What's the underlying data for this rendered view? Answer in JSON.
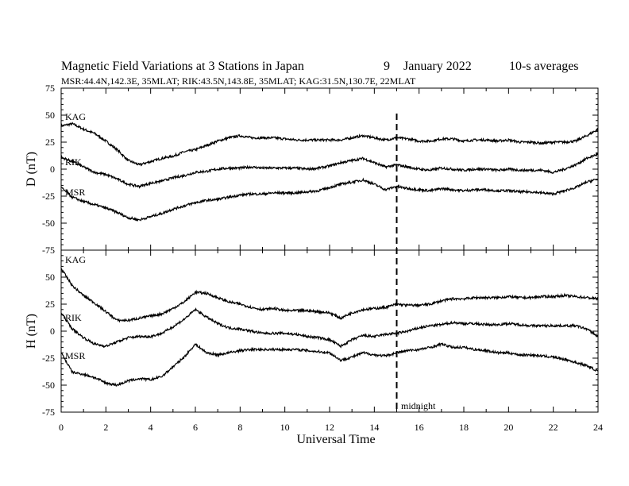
{
  "chart_data": {
    "type": "line",
    "title": "Magnetic Field Variations at 3 Stations in Japan",
    "date_day": "9",
    "date_month_year": "January  2022",
    "averaging": "10-s averages",
    "subtitle": "MSR:44.4N,142.3E, 35MLAT;  RIK:43.5N,143.8E, 35MLAT;  KAG:31.5N,130.7E, 22MLAT",
    "xlabel": "Universal Time",
    "xlim": [
      0,
      24
    ],
    "xticks": [
      "0",
      "2",
      "4",
      "6",
      "8",
      "10",
      "12",
      "14",
      "16",
      "18",
      "20",
      "22",
      "24"
    ],
    "marker": {
      "x": 15,
      "label": "midnight"
    },
    "panels": [
      {
        "ylabel": "D (nT)",
        "ylim": [
          -75,
          75
        ],
        "yticks": [
          "75",
          "50",
          "25",
          "0",
          "-25",
          "-50",
          "-75"
        ],
        "series": [
          {
            "name": "KAG",
            "x": [
              0,
              0.5,
              1,
              1.5,
              2,
              2.5,
              3,
              3.5,
              4,
              4.5,
              5,
              5.5,
              6,
              6.5,
              7,
              7.5,
              8,
              8.5,
              9,
              9.5,
              10,
              10.5,
              11,
              11.5,
              12,
              12.5,
              13,
              13.5,
              14,
              14.5,
              15,
              15.5,
              16,
              16.5,
              17,
              17.5,
              18,
              18.5,
              19,
              19.5,
              20,
              20.5,
              21,
              21.5,
              22,
              22.5,
              23,
              23.5,
              24
            ],
            "values": [
              40,
              42,
              37,
              33,
              26,
              18,
              8,
              4,
              7,
              10,
              12,
              16,
              18,
              22,
              26,
              29,
              31,
              29,
              29,
              29,
              28,
              27,
              27,
              27,
              27,
              27,
              29,
              31,
              29,
              27,
              29,
              28,
              26,
              26,
              28,
              28,
              26,
              27,
              27,
              26,
              27,
              25,
              25,
              24,
              25,
              25,
              26,
              31,
              37
            ]
          },
          {
            "name": "RIK",
            "x": [
              0,
              0.5,
              1,
              1.5,
              2,
              2.5,
              3,
              3.5,
              4,
              4.5,
              5,
              5.5,
              6,
              6.5,
              7,
              7.5,
              8,
              8.5,
              9,
              9.5,
              10,
              10.5,
              11,
              11.5,
              12,
              12.5,
              13,
              13.5,
              14,
              14.5,
              15,
              15.5,
              16,
              16.5,
              17,
              17.5,
              18,
              18.5,
              19,
              19.5,
              20,
              20.5,
              21,
              21.5,
              22,
              22.5,
              23,
              23.5,
              24
            ],
            "values": [
              11,
              7,
              2,
              -3,
              -5,
              -9,
              -14,
              -16,
              -13,
              -11,
              -8,
              -6,
              -3,
              -2,
              0,
              1,
              1,
              2,
              1,
              1,
              1,
              1,
              0,
              1,
              3,
              6,
              8,
              10,
              6,
              2,
              4,
              2,
              0,
              -1,
              1,
              0,
              -1,
              0,
              0,
              -1,
              0,
              -1,
              -1,
              -1,
              -3,
              0,
              4,
              10,
              14
            ]
          },
          {
            "name": "MSR",
            "x": [
              0,
              0.5,
              1,
              1.5,
              2,
              2.5,
              3,
              3.5,
              4,
              4.5,
              5,
              5.5,
              6,
              6.5,
              7,
              7.5,
              8,
              8.5,
              9,
              9.5,
              10,
              10.5,
              11,
              11.5,
              12,
              12.5,
              13,
              13.5,
              14,
              14.5,
              15,
              15.5,
              16,
              16.5,
              17,
              17.5,
              18,
              18.5,
              19,
              19.5,
              20,
              20.5,
              21,
              21.5,
              22,
              22.5,
              23,
              23.5,
              24
            ],
            "values": [
              -17,
              -26,
              -30,
              -33,
              -36,
              -40,
              -45,
              -47,
              -44,
              -41,
              -37,
              -34,
              -31,
              -29,
              -28,
              -26,
              -24,
              -23,
              -23,
              -22,
              -22,
              -22,
              -21,
              -20,
              -17,
              -14,
              -12,
              -10,
              -14,
              -19,
              -16,
              -18,
              -19,
              -20,
              -18,
              -19,
              -20,
              -19,
              -19,
              -20,
              -20,
              -21,
              -21,
              -22,
              -23,
              -20,
              -17,
              -12,
              -9
            ]
          }
        ]
      },
      {
        "ylabel": "H (nT)",
        "ylim": [
          -75,
          75
        ],
        "yticks": [
          "75",
          "50",
          "25",
          "0",
          "-25",
          "-50",
          "-75"
        ],
        "series": [
          {
            "name": "KAG",
            "x": [
              0,
              0.5,
              1,
              1.5,
              2,
              2.5,
              3,
              3.5,
              4,
              4.5,
              5,
              5.5,
              6,
              6.5,
              7,
              7.5,
              8,
              8.5,
              9,
              9.5,
              10,
              10.5,
              11,
              11.5,
              12,
              12.5,
              13,
              13.5,
              14,
              14.5,
              15,
              15.5,
              16,
              16.5,
              17,
              17.5,
              18,
              18.5,
              19,
              19.5,
              20,
              20.5,
              21,
              21.5,
              22,
              22.5,
              23,
              23.5,
              24
            ],
            "values": [
              58,
              42,
              33,
              26,
              18,
              10,
              10,
              12,
              14,
              16,
              21,
              27,
              36,
              35,
              31,
              27,
              25,
              22,
              20,
              21,
              19,
              19,
              19,
              18,
              17,
              12,
              17,
              20,
              21,
              22,
              25,
              24,
              24,
              25,
              28,
              30,
              30,
              31,
              31,
              31,
              32,
              31,
              31,
              32,
              32,
              33,
              32,
              31,
              30
            ]
          },
          {
            "name": "RIK",
            "x": [
              0,
              0.5,
              1,
              1.5,
              2,
              2.5,
              3,
              3.5,
              4,
              4.5,
              5,
              5.5,
              6,
              6.5,
              7,
              7.5,
              8,
              8.5,
              9,
              9.5,
              10,
              10.5,
              11,
              11.5,
              12,
              12.5,
              13,
              13.5,
              14,
              14.5,
              15,
              15.5,
              16,
              16.5,
              17,
              17.5,
              18,
              18.5,
              19,
              19.5,
              20,
              20.5,
              21,
              21.5,
              22,
              22.5,
              23,
              23.5,
              24
            ],
            "values": [
              17,
              2,
              -6,
              -12,
              -14,
              -10,
              -6,
              -5,
              -5,
              -2,
              4,
              11,
              20,
              13,
              7,
              3,
              2,
              0,
              -2,
              -2,
              -2,
              -3,
              -5,
              -6,
              -8,
              -14,
              -8,
              -4,
              -5,
              -3,
              -2,
              0,
              3,
              5,
              6,
              8,
              7,
              7,
              6,
              6,
              7,
              6,
              5,
              5,
              5,
              5,
              5,
              2,
              -5
            ]
          },
          {
            "name": "MSR",
            "x": [
              0,
              0.5,
              1,
              1.5,
              2,
              2.5,
              3,
              3.5,
              4,
              4.5,
              5,
              5.5,
              6,
              6.5,
              7,
              7.5,
              8,
              8.5,
              9,
              9.5,
              10,
              10.5,
              11,
              11.5,
              12,
              12.5,
              13,
              13.5,
              14,
              14.5,
              15,
              15.5,
              16,
              16.5,
              17,
              17.5,
              18,
              18.5,
              19,
              19.5,
              20,
              20.5,
              21,
              21.5,
              22,
              22.5,
              23,
              23.5,
              24
            ],
            "values": [
              -20,
              -38,
              -40,
              -43,
              -48,
              -50,
              -46,
              -44,
              -45,
              -42,
              -33,
              -24,
              -12,
              -20,
              -22,
              -20,
              -18,
              -17,
              -17,
              -17,
              -17,
              -17,
              -18,
              -19,
              -20,
              -27,
              -24,
              -20,
              -22,
              -23,
              -20,
              -18,
              -17,
              -15,
              -12,
              -15,
              -15,
              -17,
              -18,
              -20,
              -20,
              -22,
              -22,
              -23,
              -24,
              -26,
              -29,
              -32,
              -37
            ]
          }
        ]
      }
    ]
  }
}
